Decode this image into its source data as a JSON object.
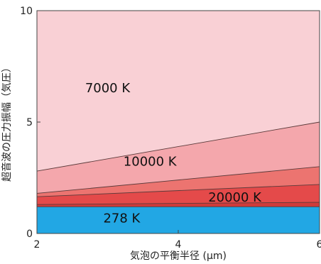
{
  "chart_data": {
    "type": "area",
    "xlabel": "気泡の平衡半径 (μm)",
    "ylabel": "超音波の圧力振幅（気圧）",
    "xlim": [
      2,
      6
    ],
    "ylim": [
      0,
      10
    ],
    "x_ticks": [
      "2",
      "4",
      "6"
    ],
    "y_ticks": [
      "0",
      "5",
      "10"
    ],
    "grid": false,
    "bands": [
      {
        "label": "278 K",
        "color": "#22a7e4",
        "lower": {
          "x": [
            2,
            6
          ],
          "y": [
            0,
            0
          ]
        },
        "upper": {
          "x": [
            2,
            6
          ],
          "y": [
            1.2,
            1.2
          ]
        }
      },
      {
        "label": "",
        "color": "#cf3b3a",
        "lower": {
          "x": [
            2,
            6
          ],
          "y": [
            1.2,
            1.2
          ]
        },
        "upper": {
          "x": [
            2,
            6
          ],
          "y": [
            1.3,
            1.4
          ]
        }
      },
      {
        "label": "20000 K",
        "color": "#e44a4a",
        "lower": {
          "x": [
            2,
            6
          ],
          "y": [
            1.3,
            1.4
          ]
        },
        "upper": {
          "x": [
            2,
            6
          ],
          "y": [
            1.65,
            2.2
          ]
        }
      },
      {
        "label": "",
        "color": "#ec7470",
        "lower": {
          "x": [
            2,
            6
          ],
          "y": [
            1.65,
            2.2
          ]
        },
        "upper": {
          "x": [
            2,
            6
          ],
          "y": [
            1.8,
            3.0
          ]
        }
      },
      {
        "label": "10000 K",
        "color": "#f4a7ac",
        "lower": {
          "x": [
            2,
            6
          ],
          "y": [
            1.8,
            3.0
          ]
        },
        "upper": {
          "x": [
            2,
            6
          ],
          "y": [
            2.8,
            5.0
          ]
        }
      },
      {
        "label": "7000 K",
        "color": "#f9d0d5",
        "lower": {
          "x": [
            2,
            6
          ],
          "y": [
            2.8,
            5.0
          ]
        },
        "upper": {
          "x": [
            2,
            6
          ],
          "y": [
            10,
            10
          ]
        }
      }
    ],
    "annotations": [
      {
        "text": "7000 K",
        "x": 3.0,
        "y": 6.5
      },
      {
        "text": "10000 K",
        "x": 3.6,
        "y": 3.2
      },
      {
        "text": "20000 K",
        "x": 4.8,
        "y": 1.6
      },
      {
        "text": "278 K",
        "x": 3.2,
        "y": 0.65
      }
    ]
  }
}
